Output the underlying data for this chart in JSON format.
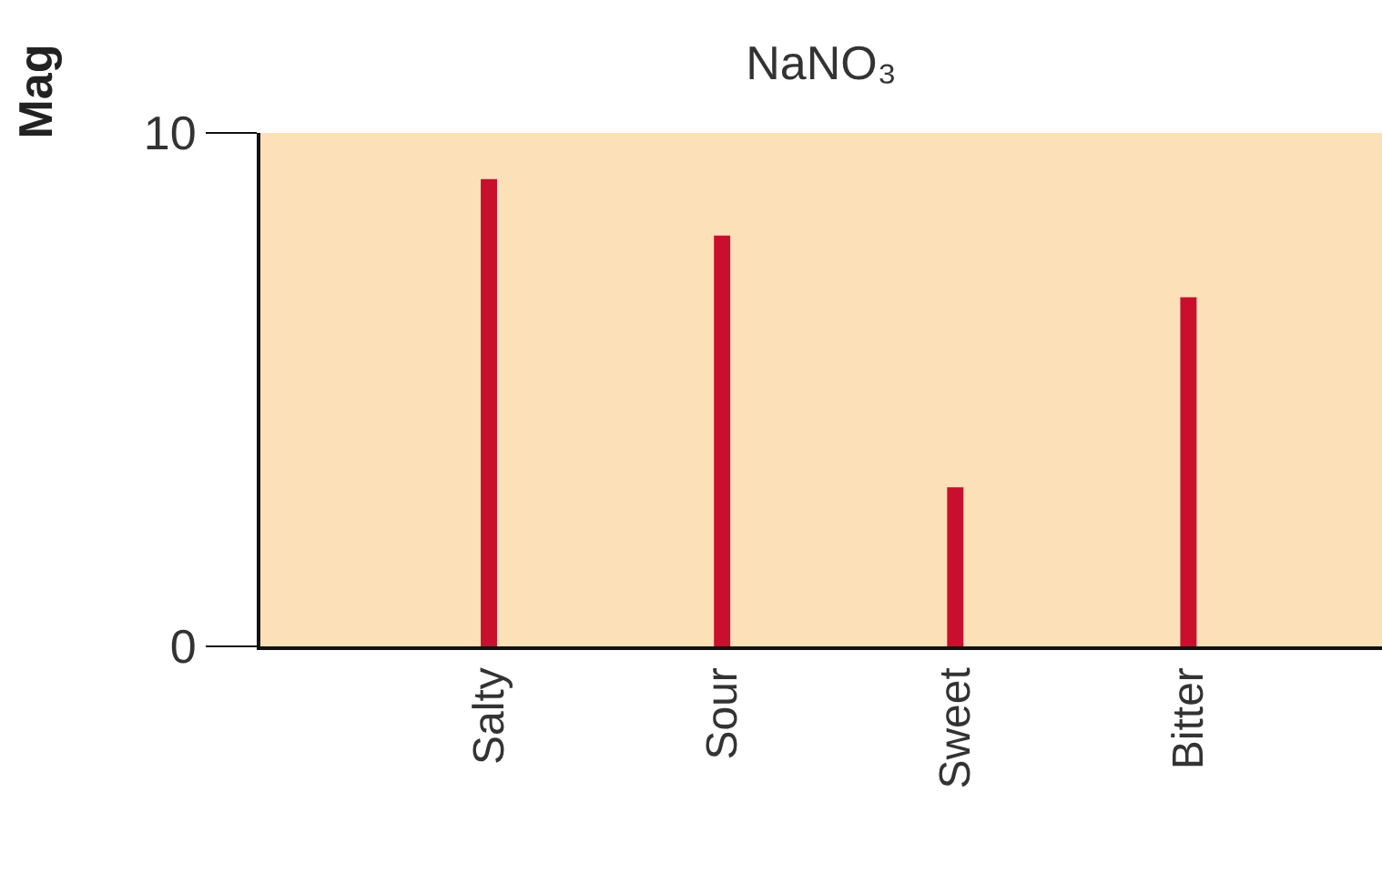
{
  "chart_data": {
    "type": "bar",
    "title": "NaNO₃",
    "ylabel": "Mag",
    "categories": [
      "Salty",
      "Sour",
      "Sweet",
      "Bitter"
    ],
    "values": [
      9.1,
      8,
      3.1,
      6.8
    ],
    "color": "#c8102e",
    "ylim": [
      0,
      10
    ],
    "yticks": [
      0,
      10
    ]
  }
}
